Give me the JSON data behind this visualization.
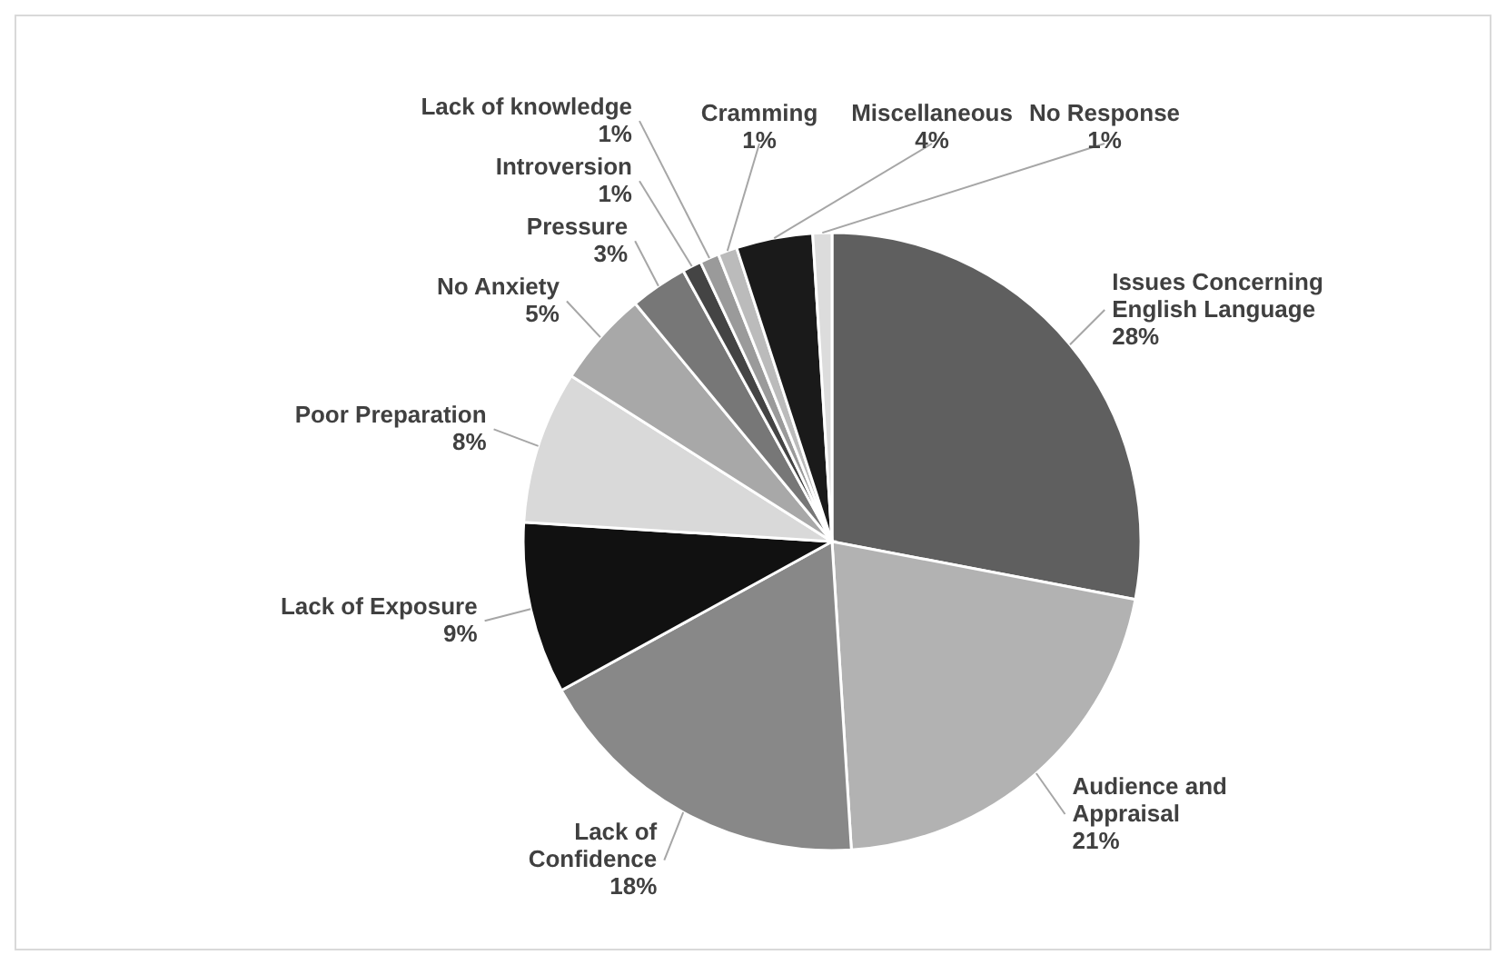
{
  "chart_data": {
    "type": "pie",
    "categories": [
      "Issues Concerning English Language",
      "Audience and Appraisal",
      "Lack of Confidence",
      "Lack of Exposure",
      "Poor Preparation",
      "No Anxiety",
      "Pressure",
      "Introversion",
      "Lack of knowledge",
      "Cramming",
      "Miscellaneous",
      "No Response"
    ],
    "values": [
      28,
      21,
      18,
      9,
      8,
      5,
      3,
      1,
      1,
      1,
      4,
      1
    ],
    "value_labels": [
      "28%",
      "21%",
      "18%",
      "9%",
      "8%",
      "5%",
      "3%",
      "1%",
      "1%",
      "1%",
      "4%",
      "1%"
    ],
    "colors": [
      "#5f5f5f",
      "#b2b2b2",
      "#888888",
      "#111111",
      "#d9d9d9",
      "#a8a8a8",
      "#777777",
      "#444444",
      "#9a9a9a",
      "#bbbbbb",
      "#1a1a1a",
      "#dcdcdc"
    ]
  }
}
